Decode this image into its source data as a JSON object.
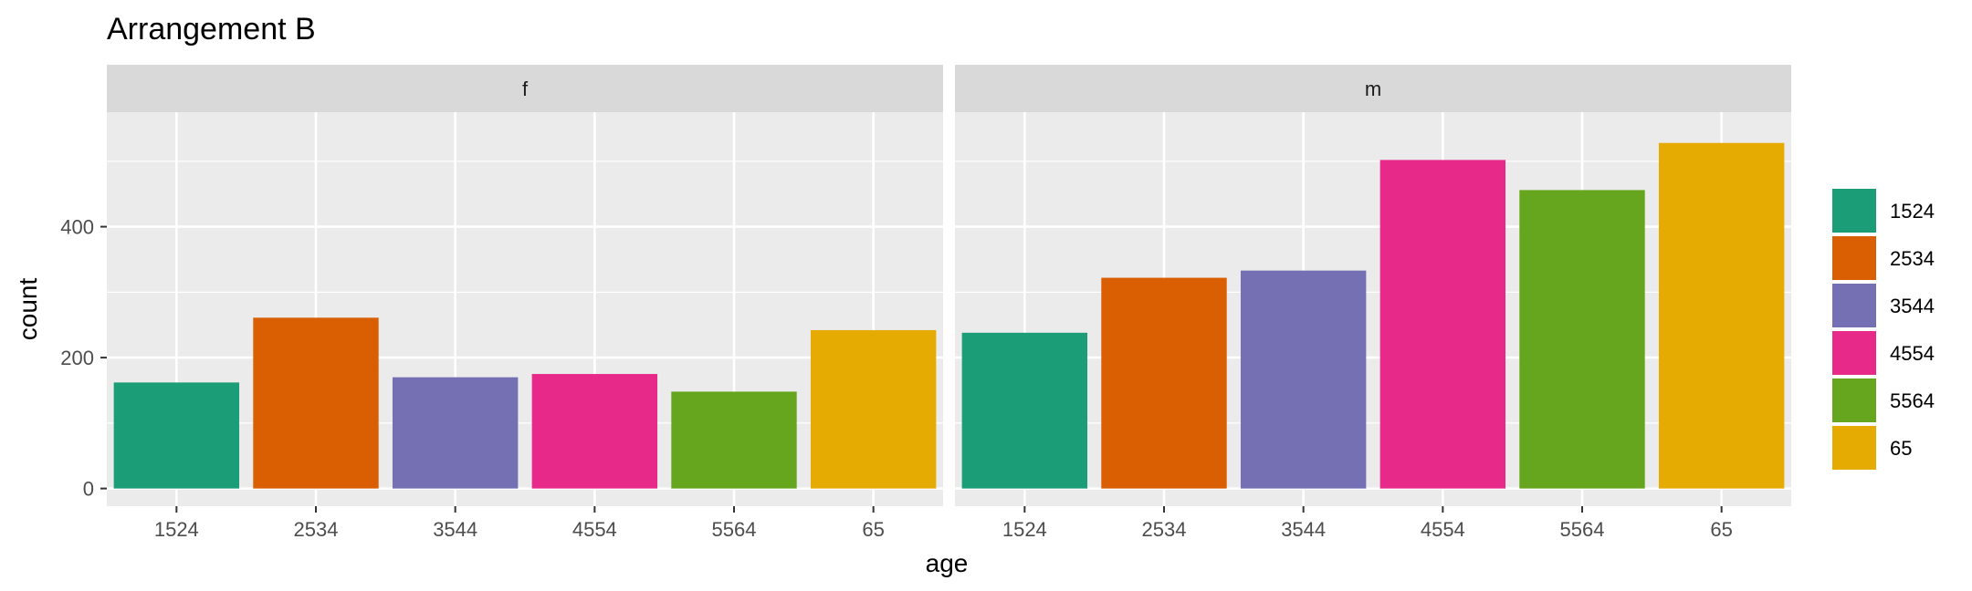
{
  "chart_data": {
    "type": "bar",
    "title": "Arrangement B",
    "xlabel": "age",
    "ylabel": "count",
    "ylim": [
      -27,
      575
    ],
    "yticks": [
      0,
      200,
      400
    ],
    "grid": true,
    "legend_position": "right",
    "categories": [
      "1524",
      "2534",
      "3544",
      "4554",
      "5564",
      "65"
    ],
    "colors": [
      "#1B9E77",
      "#D95F02",
      "#7570B3",
      "#E7298A",
      "#66A61E",
      "#E6AB02"
    ],
    "panels": [
      {
        "name": "f",
        "values": [
          162,
          261,
          170,
          175,
          148,
          242
        ]
      },
      {
        "name": "m",
        "values": [
          238,
          322,
          333,
          502,
          456,
          528
        ]
      }
    ],
    "legend": {
      "entries": [
        "1524",
        "2534",
        "3544",
        "4554",
        "5564",
        "65"
      ]
    }
  }
}
